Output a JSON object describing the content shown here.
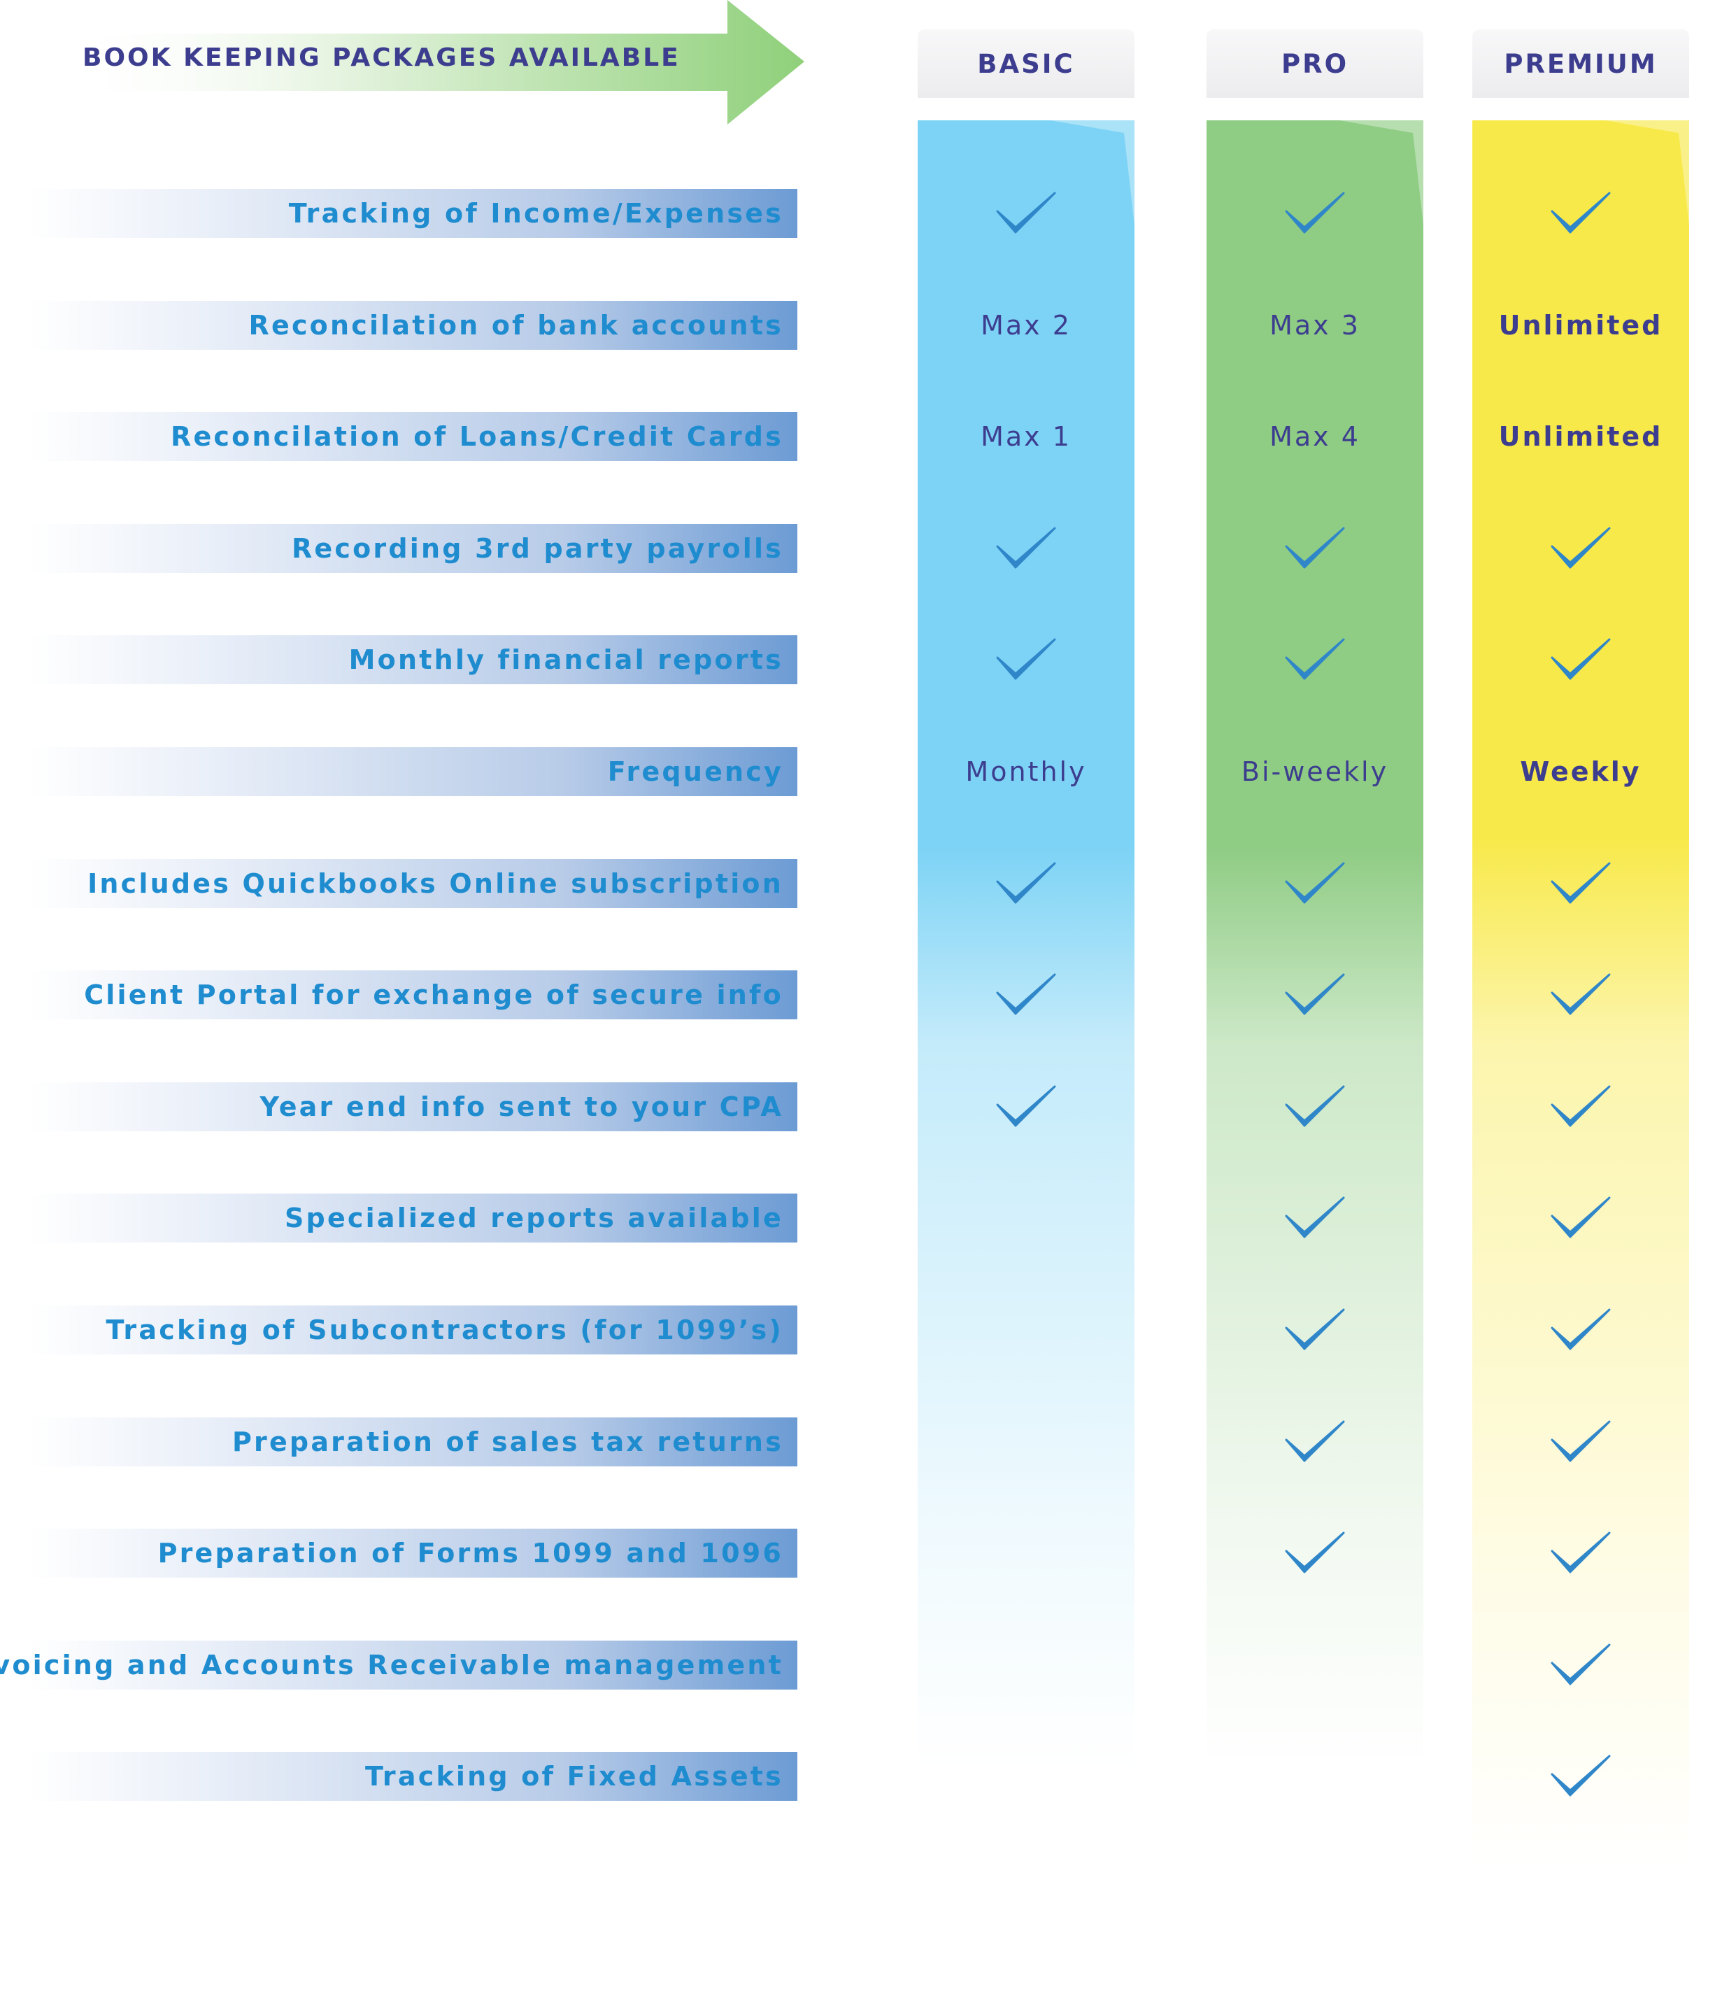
{
  "header": {
    "title": "BOOK KEEPING PACKAGES AVAILABLE"
  },
  "plans": [
    {
      "name": "BASIC",
      "color": "#7dd3f5"
    },
    {
      "name": "PRO",
      "color": "#8fcc84"
    },
    {
      "name": "PREMIUM",
      "color": "#f8e94a"
    }
  ],
  "features": [
    {
      "label": "Tracking of Income/Expenses",
      "cells": [
        "check",
        "check",
        "check"
      ]
    },
    {
      "label": "Reconcilation of bank accounts",
      "cells": [
        "Max 2",
        "Max 3",
        "Unlimited"
      ]
    },
    {
      "label": "Reconcilation of Loans/Credit Cards",
      "cells": [
        "Max 1",
        "Max 4",
        "Unlimited"
      ]
    },
    {
      "label": "Recording 3rd party payrolls",
      "cells": [
        "check",
        "check",
        "check"
      ]
    },
    {
      "label": "Monthly financial reports",
      "cells": [
        "check",
        "check",
        "check"
      ]
    },
    {
      "label": "Frequency",
      "cells": [
        "Monthly",
        "Bi-weekly",
        "Weekly"
      ]
    },
    {
      "label": "Includes Quickbooks Online subscription",
      "cells": [
        "check",
        "check",
        "check"
      ]
    },
    {
      "label": "Client Portal for exchange of secure info",
      "cells": [
        "check",
        "check",
        "check"
      ]
    },
    {
      "label": "Year end info sent to your CPA",
      "cells": [
        "check",
        "check",
        "check"
      ]
    },
    {
      "label": "Specialized reports available",
      "cells": [
        "",
        "check",
        "check"
      ]
    },
    {
      "label": "Tracking of Subcontractors (for 1099’s)",
      "cells": [
        "",
        "check",
        "check"
      ]
    },
    {
      "label": "Preparation of sales tax returns",
      "cells": [
        "",
        "check",
        "check"
      ]
    },
    {
      "label": "Preparation of Forms 1099 and 1096",
      "cells": [
        "",
        "check",
        "check"
      ]
    },
    {
      "label": "Invoicing and Accounts Receivable management",
      "cells": [
        "",
        "",
        "check"
      ]
    },
    {
      "label": "Tracking of Fixed Assets",
      "cells": [
        "",
        "",
        "check"
      ]
    }
  ]
}
